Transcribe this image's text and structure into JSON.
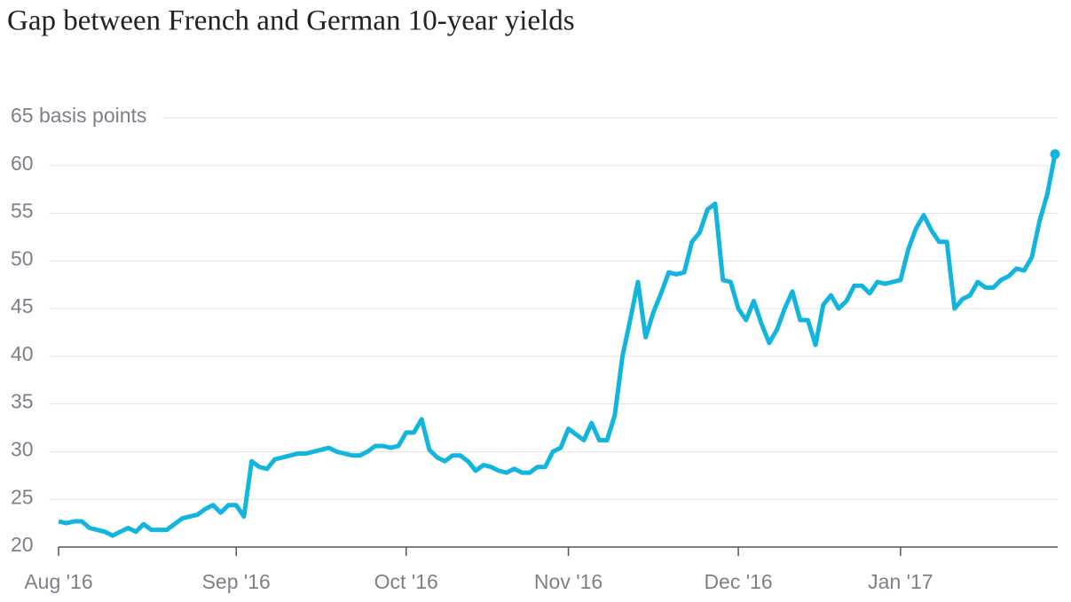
{
  "chart_data": {
    "type": "line",
    "title": "Gap between French and German 10-year yields",
    "categories": [
      "Aug '16",
      null,
      null,
      null,
      null,
      null,
      null,
      null,
      null,
      null,
      null,
      null,
      null,
      null,
      null,
      null,
      null,
      null,
      null,
      null,
      null,
      null,
      null,
      "Sep '16",
      null,
      null,
      null,
      null,
      null,
      null,
      null,
      null,
      null,
      null,
      null,
      null,
      null,
      null,
      null,
      null,
      null,
      null,
      null,
      null,
      null,
      "Oct '16",
      null,
      null,
      null,
      null,
      null,
      null,
      null,
      null,
      null,
      null,
      null,
      null,
      null,
      null,
      null,
      null,
      null,
      null,
      null,
      null,
      "Nov '16",
      null,
      null,
      null,
      null,
      null,
      null,
      null,
      null,
      null,
      null,
      null,
      null,
      null,
      null,
      null,
      null,
      null,
      null,
      null,
      null,
      null,
      "Dec '16",
      null,
      null,
      null,
      null,
      null,
      null,
      null,
      null,
      null,
      null,
      null,
      null,
      null,
      null,
      null,
      null,
      null,
      null,
      null,
      null,
      "Jan '17",
      null,
      null,
      null,
      null,
      null,
      null,
      null,
      null,
      null,
      null,
      null,
      null,
      null,
      null,
      null,
      null,
      null,
      null,
      null,
      null
    ],
    "values": [
      22.7,
      22.5,
      22.7,
      22.7,
      22.0,
      21.8,
      21.6,
      21.2,
      21.6,
      22.0,
      21.6,
      22.4,
      21.8,
      21.8,
      21.8,
      22.4,
      23.0,
      23.2,
      23.4,
      24.0,
      24.4,
      23.6,
      24.4,
      24.4,
      23.2,
      29.0,
      28.4,
      28.2,
      29.2,
      29.4,
      29.6,
      29.8,
      29.8,
      30.0,
      30.2,
      30.4,
      30.0,
      29.8,
      29.6,
      29.6,
      30.0,
      30.6,
      30.6,
      30.4,
      30.6,
      32.0,
      32.0,
      33.4,
      30.2,
      29.4,
      29.0,
      29.6,
      29.6,
      29.0,
      28.0,
      28.6,
      28.4,
      28.0,
      27.8,
      28.2,
      27.8,
      27.8,
      28.4,
      28.4,
      30.0,
      30.4,
      32.4,
      31.8,
      31.2,
      33.0,
      31.2,
      31.2,
      33.8,
      40.0,
      43.8,
      47.8,
      42.0,
      44.6,
      46.6,
      48.8,
      48.6,
      48.8,
      52.0,
      53.0,
      55.4,
      56.0,
      48.0,
      47.8,
      45.0,
      43.8,
      45.8,
      43.4,
      41.4,
      42.8,
      45.0,
      46.8,
      43.8,
      43.8,
      41.2,
      45.4,
      46.4,
      45.0,
      45.8,
      47.4,
      47.4,
      46.6,
      47.8,
      47.6,
      47.8,
      48.0,
      51.2,
      53.4,
      54.8,
      53.2,
      52.0,
      52.0,
      45.0,
      46.0,
      46.4,
      47.8,
      47.2,
      47.2,
      48.0,
      48.4,
      49.2,
      49.0,
      50.4,
      54.2,
      57.0,
      61.2
    ],
    "color": "#12b5de",
    "ylim": [
      20,
      65
    ],
    "yticks": [
      20,
      25,
      30,
      35,
      40,
      45,
      50,
      55,
      60,
      {
        "value": 65,
        "label": "65 basis points"
      }
    ],
    "grid": true
  }
}
